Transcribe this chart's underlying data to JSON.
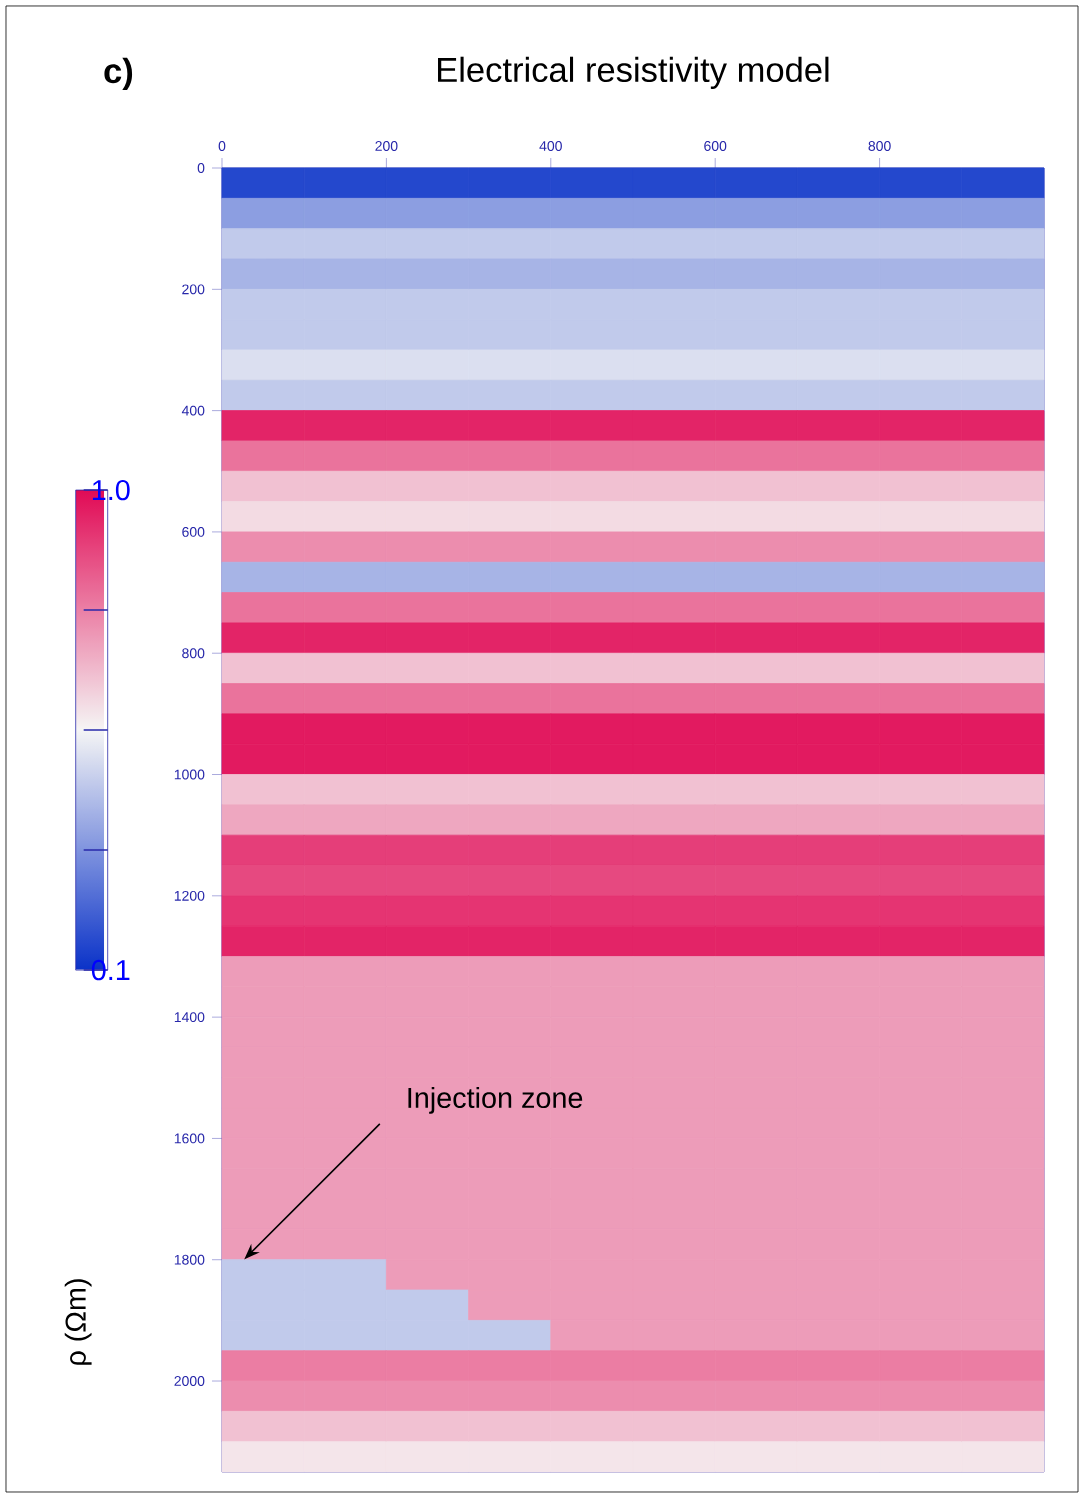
{
  "chart_data": {
    "type": "heatmap",
    "title": "Electrical resistivity model",
    "clabel": "ρ (Ωm)",
    "annotations": [
      "c)",
      "Injection zone"
    ],
    "x": [
      50,
      150,
      250,
      350,
      450,
      550,
      650,
      750,
      850,
      950
    ],
    "y": [
      25,
      75,
      125,
      175,
      225,
      275,
      325,
      375,
      425,
      475,
      525,
      575,
      625,
      675,
      725,
      775,
      825,
      875,
      925,
      975,
      1025,
      1075,
      1125,
      1175,
      1225,
      1275,
      1325,
      1375,
      1425,
      1475,
      1525,
      1575,
      1625,
      1675,
      1725,
      1775,
      1825,
      1875,
      1925,
      1975,
      2025,
      2075,
      2125
    ],
    "xlim": [
      0,
      1000
    ],
    "ylim": [
      2150,
      0
    ],
    "xticks": [
      0,
      200,
      400,
      600,
      800
    ],
    "yticks": [
      0,
      200,
      400,
      600,
      800,
      1000,
      1200,
      1400,
      1600,
      1800,
      2000
    ],
    "clim": [
      0.1,
      1.0
    ],
    "cticks": [
      {
        "value": 0.1,
        "label": "0.1"
      },
      {
        "value": 0.325,
        "label": null
      },
      {
        "value": 0.55,
        "label": null
      },
      {
        "value": 0.775,
        "label": null
      },
      {
        "value": 1,
        "label": "1.0"
      }
    ],
    "cells": [
      [
        0.15,
        0.15,
        0.15,
        0.15,
        0.15,
        0.15,
        0.15,
        0.15,
        0.15,
        0.15
      ],
      [
        0.35,
        0.35,
        0.35,
        0.35,
        0.35,
        0.35,
        0.35,
        0.35,
        0.35,
        0.35
      ],
      [
        0.45,
        0.45,
        0.45,
        0.45,
        0.45,
        0.45,
        0.45,
        0.45,
        0.45,
        0.45
      ],
      [
        0.4,
        0.4,
        0.4,
        0.4,
        0.4,
        0.4,
        0.4,
        0.4,
        0.4,
        0.4
      ],
      [
        0.45,
        0.45,
        0.45,
        0.45,
        0.45,
        0.45,
        0.45,
        0.45,
        0.45,
        0.45
      ],
      [
        0.45,
        0.45,
        0.45,
        0.45,
        0.45,
        0.45,
        0.45,
        0.45,
        0.45,
        0.45
      ],
      [
        0.5,
        0.5,
        0.5,
        0.5,
        0.5,
        0.5,
        0.5,
        0.5,
        0.5,
        0.5
      ],
      [
        0.45,
        0.45,
        0.45,
        0.45,
        0.45,
        0.45,
        0.45,
        0.45,
        0.45,
        0.45
      ],
      [
        0.95,
        0.95,
        0.95,
        0.95,
        0.95,
        0.95,
        0.95,
        0.95,
        0.95,
        0.95
      ],
      [
        0.8,
        0.8,
        0.8,
        0.8,
        0.8,
        0.8,
        0.8,
        0.8,
        0.8,
        0.8
      ],
      [
        0.65,
        0.65,
        0.65,
        0.65,
        0.65,
        0.65,
        0.65,
        0.65,
        0.65,
        0.65
      ],
      [
        0.6,
        0.6,
        0.6,
        0.6,
        0.6,
        0.6,
        0.6,
        0.6,
        0.6,
        0.6
      ],
      [
        0.75,
        0.75,
        0.75,
        0.75,
        0.75,
        0.75,
        0.75,
        0.75,
        0.75,
        0.75
      ],
      [
        0.4,
        0.4,
        0.4,
        0.4,
        0.4,
        0.4,
        0.4,
        0.4,
        0.4,
        0.4
      ],
      [
        0.8,
        0.8,
        0.8,
        0.8,
        0.8,
        0.8,
        0.8,
        0.8,
        0.8,
        0.8
      ],
      [
        0.95,
        0.95,
        0.95,
        0.95,
        0.95,
        0.95,
        0.95,
        0.95,
        0.95,
        0.95
      ],
      [
        0.65,
        0.65,
        0.65,
        0.65,
        0.65,
        0.65,
        0.65,
        0.65,
        0.65,
        0.65
      ],
      [
        0.8,
        0.8,
        0.8,
        0.8,
        0.8,
        0.8,
        0.8,
        0.8,
        0.8,
        0.8
      ],
      [
        0.97,
        0.97,
        0.97,
        0.97,
        0.97,
        0.97,
        0.97,
        0.97,
        0.97,
        0.97
      ],
      [
        0.97,
        0.97,
        0.97,
        0.97,
        0.97,
        0.97,
        0.97,
        0.97,
        0.97,
        0.97
      ],
      [
        0.65,
        0.65,
        0.65,
        0.65,
        0.65,
        0.65,
        0.65,
        0.65,
        0.65,
        0.65
      ],
      [
        0.7,
        0.7,
        0.7,
        0.7,
        0.7,
        0.7,
        0.7,
        0.7,
        0.7,
        0.7
      ],
      [
        0.9,
        0.9,
        0.9,
        0.9,
        0.9,
        0.9,
        0.9,
        0.9,
        0.9,
        0.9
      ],
      [
        0.88,
        0.88,
        0.88,
        0.88,
        0.88,
        0.88,
        0.88,
        0.88,
        0.88,
        0.88
      ],
      [
        0.92,
        0.92,
        0.92,
        0.92,
        0.92,
        0.92,
        0.92,
        0.92,
        0.92,
        0.92
      ],
      [
        0.95,
        0.95,
        0.95,
        0.95,
        0.95,
        0.95,
        0.95,
        0.95,
        0.95,
        0.95
      ],
      [
        0.72,
        0.72,
        0.72,
        0.72,
        0.72,
        0.72,
        0.72,
        0.72,
        0.72,
        0.72
      ],
      [
        0.72,
        0.72,
        0.72,
        0.72,
        0.72,
        0.72,
        0.72,
        0.72,
        0.72,
        0.72
      ],
      [
        0.72,
        0.72,
        0.72,
        0.72,
        0.72,
        0.72,
        0.72,
        0.72,
        0.72,
        0.72
      ],
      [
        0.72,
        0.72,
        0.72,
        0.72,
        0.72,
        0.72,
        0.72,
        0.72,
        0.72,
        0.72
      ],
      [
        0.72,
        0.72,
        0.72,
        0.72,
        0.72,
        0.72,
        0.72,
        0.72,
        0.72,
        0.72
      ],
      [
        0.72,
        0.72,
        0.72,
        0.72,
        0.72,
        0.72,
        0.72,
        0.72,
        0.72,
        0.72
      ],
      [
        0.72,
        0.72,
        0.72,
        0.72,
        0.72,
        0.72,
        0.72,
        0.72,
        0.72,
        0.72
      ],
      [
        0.72,
        0.72,
        0.72,
        0.72,
        0.72,
        0.72,
        0.72,
        0.72,
        0.72,
        0.72
      ],
      [
        0.72,
        0.72,
        0.72,
        0.72,
        0.72,
        0.72,
        0.72,
        0.72,
        0.72,
        0.72
      ],
      [
        0.72,
        0.72,
        0.72,
        0.72,
        0.72,
        0.72,
        0.72,
        0.72,
        0.72,
        0.72
      ],
      [
        0.45,
        0.45,
        0.72,
        0.72,
        0.72,
        0.72,
        0.72,
        0.72,
        0.72,
        0.72
      ],
      [
        0.45,
        0.45,
        0.45,
        0.72,
        0.72,
        0.72,
        0.72,
        0.72,
        0.72,
        0.72
      ],
      [
        0.45,
        0.45,
        0.45,
        0.45,
        0.72,
        0.72,
        0.72,
        0.72,
        0.72,
        0.72
      ],
      [
        0.78,
        0.78,
        0.78,
        0.78,
        0.78,
        0.78,
        0.78,
        0.78,
        0.78,
        0.78
      ],
      [
        0.75,
        0.75,
        0.75,
        0.75,
        0.75,
        0.75,
        0.75,
        0.75,
        0.75,
        0.75
      ],
      [
        0.65,
        0.65,
        0.65,
        0.65,
        0.65,
        0.65,
        0.65,
        0.65,
        0.65,
        0.65
      ],
      [
        0.58,
        0.58,
        0.58,
        0.58,
        0.58,
        0.58,
        0.58,
        0.58,
        0.58,
        0.58
      ]
    ]
  }
}
